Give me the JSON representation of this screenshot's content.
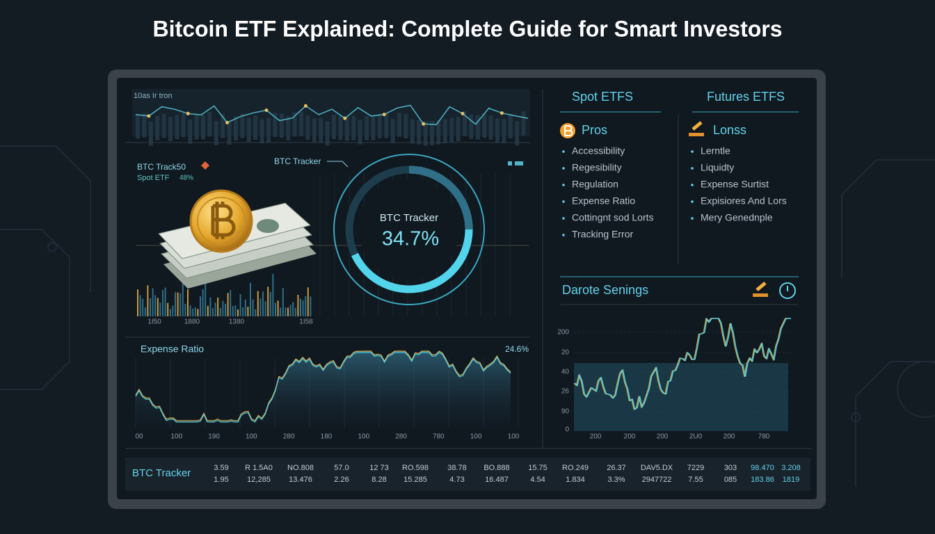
{
  "title": "Bitcoin ETF Explained: Complete Guide for Smart Investors",
  "left_panel": {
    "top_chart_label": "10as Ir tron",
    "tracker_label": "BTC Track50",
    "spot_label": "Spot ETF",
    "spot_value": "48%",
    "pointer_label": "BTC Tracker",
    "ring_label": "BTC Tracker",
    "ring_value": "34.7%",
    "bar_axis_labels": [
      "1I50",
      "1880",
      "1380",
      "1I58"
    ],
    "expense_label": "Expense Ratio",
    "expense_value": "24.6%",
    "expense_axis_labels": [
      "00",
      "100",
      "190",
      "100",
      "280",
      "180",
      "100",
      "280",
      "780",
      "100",
      "100"
    ]
  },
  "right_panel": {
    "spot_heading": "Spot ETFS",
    "futures_heading": "Futures ETFS",
    "pros_heading": "Pros",
    "cons_heading": "Lonss",
    "pros": [
      "Accessibility",
      "Regesibility",
      "Regulation",
      "Expense Ratio",
      "Cottingnt sod Lorts",
      "Tracking Error"
    ],
    "cons": [
      "Lerntle",
      "Liquidty",
      "Expense Surtist",
      "Expisiores And Lors",
      "Mery Genednple"
    ],
    "section_heading": "Darote Senings",
    "y_axis_labels": [
      "200",
      "20",
      "40",
      "26",
      "90",
      "0"
    ],
    "x_axis_labels": [
      "200",
      "200",
      "200",
      "2U0",
      "200",
      "780"
    ]
  },
  "ticker": {
    "label": "BTC Tracker",
    "rows": [
      [
        "3.59",
        "R 1.5A0",
        "NO.808",
        "57.0",
        "12 73",
        "RO.598",
        "38.78",
        "BO.888",
        "15.75",
        "RO.249",
        "26.37",
        "DAV5.DX",
        "7229",
        "303",
        "98.470",
        "3.208"
      ],
      [
        "1.95",
        "12,285",
        "13.476",
        "2.26",
        "8.28",
        "15.285",
        "4.73",
        "16.487",
        "4.54",
        "1.834",
        "3.3%",
        "2947722",
        "7.55",
        "085",
        "183.86",
        "1819"
      ]
    ]
  }
}
